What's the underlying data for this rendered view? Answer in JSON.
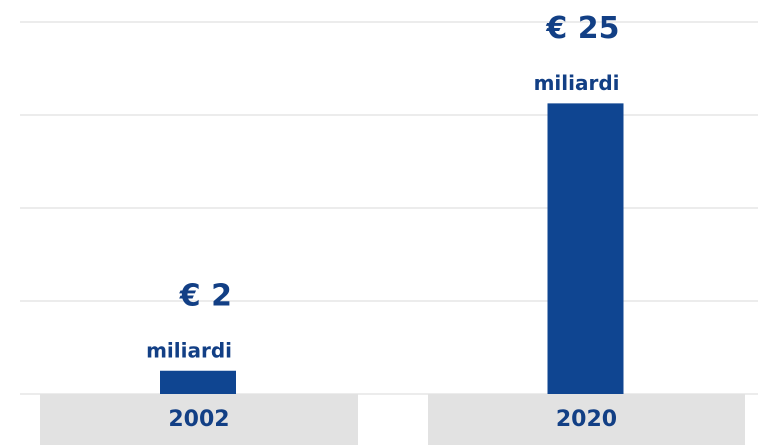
{
  "chart_data": {
    "type": "bar",
    "categories": [
      "2002",
      "2020"
    ],
    "values": [
      2,
      25
    ],
    "value_labels": [
      "€ 2",
      "€ 25"
    ],
    "unit_label": "miliardi",
    "color": "#0f4591",
    "ylim": [
      0,
      32
    ],
    "yticks": [
      0,
      8,
      16,
      24,
      32
    ],
    "grid": true
  }
}
